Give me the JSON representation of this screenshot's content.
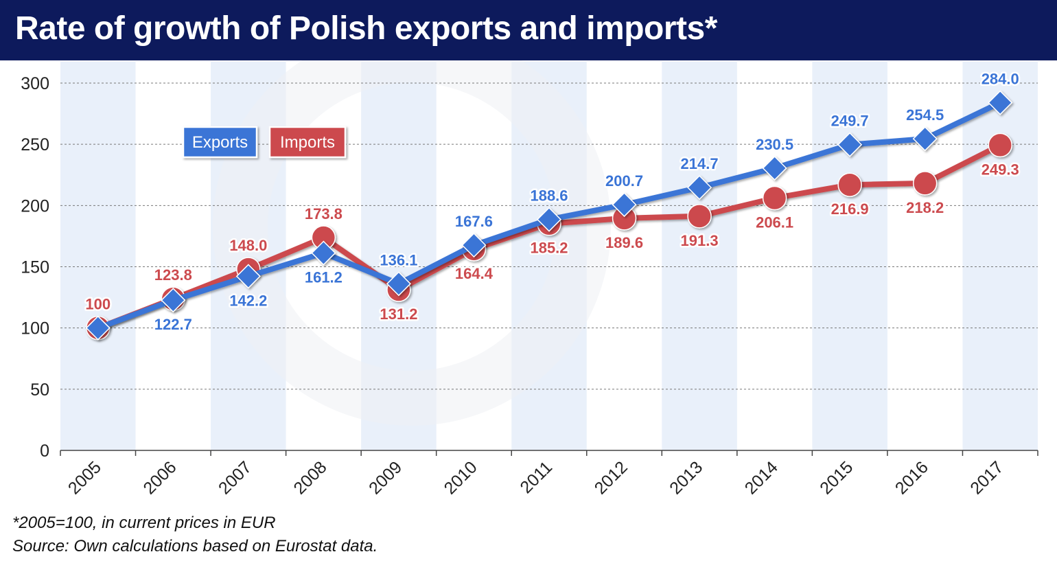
{
  "title": "Rate of growth of Polish exports and imports*",
  "footnotes": {
    "note": "*2005=100, in current prices in EUR",
    "source": "Source: Own calculations based on Eurostat data."
  },
  "colors": {
    "title_bg": "#0d1a5c",
    "exports": "#3a74d6",
    "imports": "#cc4a4e",
    "band": "#e9f0fa",
    "grid": "#777777"
  },
  "chart_data": {
    "type": "line",
    "categories": [
      "2005",
      "2006",
      "2007",
      "2008",
      "2009",
      "2010",
      "2011",
      "2012",
      "2013",
      "2014",
      "2015",
      "2016",
      "2017"
    ],
    "ylim": [
      0,
      300
    ],
    "yticks": [
      0,
      50,
      100,
      150,
      200,
      250,
      300
    ],
    "grid": true,
    "legend_position": "top-left",
    "series": [
      {
        "name": "Exports",
        "marker": "diamond",
        "values": [
          100,
          122.7,
          142.2,
          161.2,
          136.1,
          167.6,
          188.6,
          200.7,
          214.7,
          230.5,
          249.7,
          254.5,
          284.0
        ],
        "labels": [
          "100",
          "122.7",
          "142.2",
          "161.2",
          "136.1",
          "167.6",
          "188.6",
          "200.7",
          "214.7",
          "230.5",
          "249.7",
          "254.5",
          "284.0"
        ]
      },
      {
        "name": "Imports",
        "marker": "circle",
        "values": [
          100,
          123.8,
          148.0,
          173.8,
          131.2,
          164.4,
          185.2,
          189.6,
          191.3,
          206.1,
          216.9,
          218.2,
          249.3
        ],
        "labels": [
          "100",
          "123.8",
          "148.0",
          "173.8",
          "131.2",
          "164.4",
          "185.2",
          "189.6",
          "191.3",
          "206.1",
          "216.9",
          "218.2",
          "249.3"
        ]
      }
    ]
  }
}
